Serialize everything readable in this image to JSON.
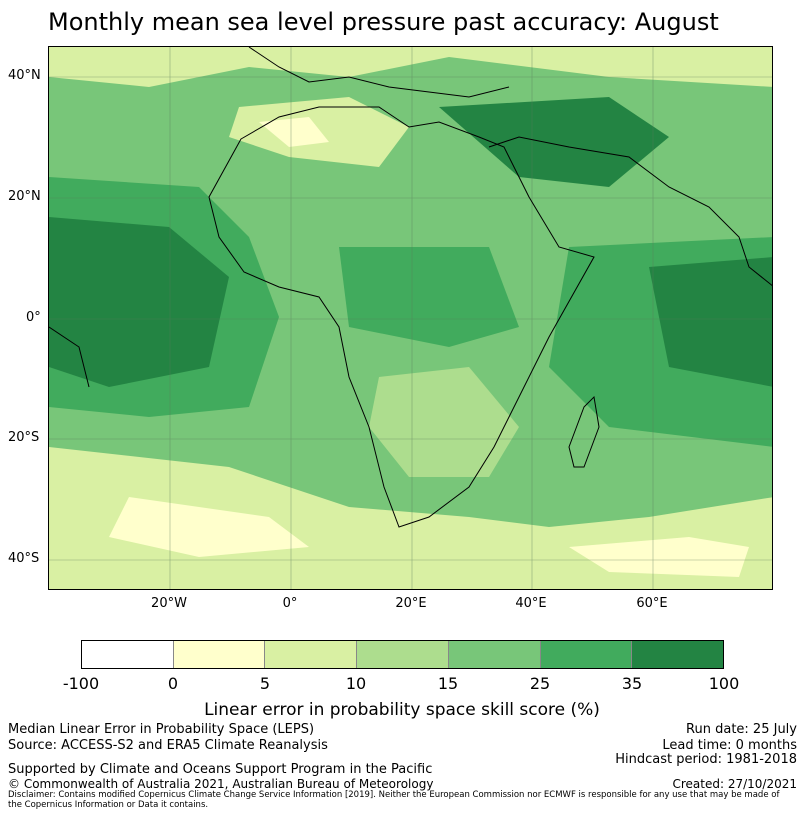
{
  "title": "Monthly mean sea level pressure past accuracy: August",
  "map": {
    "lat_labels": [
      "40°N",
      "20°N",
      "0°",
      "20°S",
      "40°S"
    ],
    "lon_labels": [
      "20°W",
      "0°",
      "20°E",
      "40°E",
      "60°E"
    ],
    "lat_range": [
      -45,
      45
    ],
    "lon_range": [
      -40,
      80
    ]
  },
  "colorbar": {
    "ticks": [
      "-100",
      "0",
      "5",
      "10",
      "15",
      "25",
      "35",
      "100"
    ],
    "colors": [
      "#ffffff",
      "#ffffcc",
      "#d9f0a3",
      "#addd8e",
      "#78c679",
      "#41ab5d",
      "#238443"
    ],
    "label": "Linear error in probability space skill score (%)"
  },
  "footer": {
    "left_line1": "Median Linear Error in Probability Space (LEPS)",
    "left_line2": "Source: ACCESS-S2 and ERA5 Climate Reanalysis",
    "supported": "Supported by Climate and Oceans Support Program in the Pacific",
    "copyright": "© Commonwealth of Australia 2021, Australian Bureau of Meteorology",
    "run_date": "Run date: 25 July",
    "lead_time": "Lead time: 0 months",
    "hindcast": "Hindcast period: 1981-2018",
    "created": "Created: 27/10/2021",
    "disclaimer": "Disclaimer: Contains modified Copernicus Climate Change Service Information [2019]. Neither the European Commission nor ECMWF is responsible for any use that may be made of the Copernicus Information or Data it contains."
  }
}
